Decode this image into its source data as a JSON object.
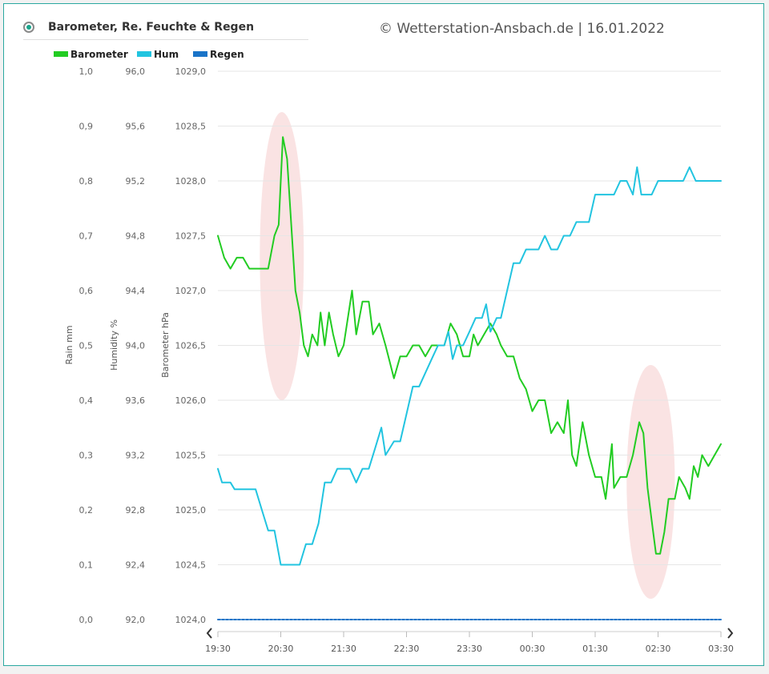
{
  "header": {
    "title": "Barometer, Re. Feuchte & Regen",
    "copyright": "© Wetterstation-Ansbach.de  |  16.01.2022"
  },
  "chart_data": {
    "type": "line",
    "x": [
      "19:30",
      "20:30",
      "21:30",
      "22:30",
      "23:30",
      "00:30",
      "01:30",
      "02:30",
      "03:30"
    ],
    "series": [
      {
        "name": "Barometer",
        "color": "#22cc22",
        "axis": "Barometer hPa",
        "points": [
          [
            "19:30",
            1027.5
          ],
          [
            "19:36",
            1027.3
          ],
          [
            "19:42",
            1027.2
          ],
          [
            "19:48",
            1027.3
          ],
          [
            "19:54",
            1027.3
          ],
          [
            "20:00",
            1027.2
          ],
          [
            "20:06",
            1027.2
          ],
          [
            "20:12",
            1027.2
          ],
          [
            "20:18",
            1027.2
          ],
          [
            "20:24",
            1027.5
          ],
          [
            "20:28",
            1027.6
          ],
          [
            "20:32",
            1028.4
          ],
          [
            "20:36",
            1028.2
          ],
          [
            "20:40",
            1027.6
          ],
          [
            "20:44",
            1027.0
          ],
          [
            "20:48",
            1026.8
          ],
          [
            "20:52",
            1026.5
          ],
          [
            "20:56",
            1026.4
          ],
          [
            "21:00",
            1026.6
          ],
          [
            "21:05",
            1026.5
          ],
          [
            "21:08",
            1026.8
          ],
          [
            "21:12",
            1026.5
          ],
          [
            "21:16",
            1026.8
          ],
          [
            "21:20",
            1026.6
          ],
          [
            "21:25",
            1026.4
          ],
          [
            "21:30",
            1026.5
          ],
          [
            "21:38",
            1027.0
          ],
          [
            "21:42",
            1026.6
          ],
          [
            "21:48",
            1026.9
          ],
          [
            "21:54",
            1026.9
          ],
          [
            "21:58",
            1026.6
          ],
          [
            "22:04",
            1026.7
          ],
          [
            "22:10",
            1026.5
          ],
          [
            "22:18",
            1026.2
          ],
          [
            "22:24",
            1026.4
          ],
          [
            "22:30",
            1026.4
          ],
          [
            "22:36",
            1026.5
          ],
          [
            "22:42",
            1026.5
          ],
          [
            "22:48",
            1026.4
          ],
          [
            "22:54",
            1026.5
          ],
          [
            "23:00",
            1026.5
          ],
          [
            "23:06",
            1026.5
          ],
          [
            "23:12",
            1026.7
          ],
          [
            "23:18",
            1026.6
          ],
          [
            "23:24",
            1026.4
          ],
          [
            "23:30",
            1026.4
          ],
          [
            "23:34",
            1026.6
          ],
          [
            "23:38",
            1026.5
          ],
          [
            "23:44",
            1026.6
          ],
          [
            "23:50",
            1026.7
          ],
          [
            "23:56",
            1026.6
          ],
          [
            "24:00",
            1026.5
          ],
          [
            "24:06",
            1026.4
          ],
          [
            "24:12",
            1026.4
          ],
          [
            "24:18",
            1026.2
          ],
          [
            "24:24",
            1026.1
          ],
          [
            "24:30",
            1025.9
          ],
          [
            "24:36",
            1026.0
          ],
          [
            "24:42",
            1026.0
          ],
          [
            "24:48",
            1025.7
          ],
          [
            "24:54",
            1025.8
          ],
          [
            "25:00",
            1025.7
          ],
          [
            "25:04",
            1026.0
          ],
          [
            "25:08",
            1025.5
          ],
          [
            "25:12",
            1025.4
          ],
          [
            "25:18",
            1025.8
          ],
          [
            "25:24",
            1025.5
          ],
          [
            "25:30",
            1025.3
          ],
          [
            "25:36",
            1025.3
          ],
          [
            "25:40",
            1025.1
          ],
          [
            "25:46",
            1025.6
          ],
          [
            "25:48",
            1025.2
          ],
          [
            "25:54",
            1025.3
          ],
          [
            "26:00",
            1025.3
          ],
          [
            "26:06",
            1025.5
          ],
          [
            "26:12",
            1025.8
          ],
          [
            "26:16",
            1025.7
          ],
          [
            "26:20",
            1025.2
          ],
          [
            "26:24",
            1024.9
          ],
          [
            "26:28",
            1024.6
          ],
          [
            "26:32",
            1024.6
          ],
          [
            "26:36",
            1024.8
          ],
          [
            "26:40",
            1025.1
          ],
          [
            "26:46",
            1025.1
          ],
          [
            "26:50",
            1025.3
          ],
          [
            "26:56",
            1025.2
          ],
          [
            "27:00",
            1025.1
          ],
          [
            "27:04",
            1025.4
          ],
          [
            "27:08",
            1025.3
          ],
          [
            "27:12",
            1025.5
          ],
          [
            "27:18",
            1025.4
          ],
          [
            "27:24",
            1025.5
          ],
          [
            "27:30",
            1025.6
          ]
        ]
      },
      {
        "name": "Hum",
        "color": "#22c4e0",
        "axis": "Humidity %",
        "points": [
          [
            "19:30",
            93.1
          ],
          [
            "19:34",
            93.0
          ],
          [
            "19:42",
            93.0
          ],
          [
            "19:46",
            92.95
          ],
          [
            "19:54",
            92.95
          ],
          [
            "20:06",
            92.95
          ],
          [
            "20:12",
            92.8
          ],
          [
            "20:18",
            92.65
          ],
          [
            "20:24",
            92.65
          ],
          [
            "20:30",
            92.4
          ],
          [
            "20:36",
            92.4
          ],
          [
            "20:42",
            92.4
          ],
          [
            "20:48",
            92.4
          ],
          [
            "20:54",
            92.55
          ],
          [
            "21:00",
            92.55
          ],
          [
            "21:06",
            92.7
          ],
          [
            "21:12",
            93.0
          ],
          [
            "21:18",
            93.0
          ],
          [
            "21:24",
            93.1
          ],
          [
            "21:30",
            93.1
          ],
          [
            "21:36",
            93.1
          ],
          [
            "21:42",
            93.0
          ],
          [
            "21:48",
            93.1
          ],
          [
            "21:54",
            93.1
          ],
          [
            "22:00",
            93.25
          ],
          [
            "22:06",
            93.4
          ],
          [
            "22:10",
            93.2
          ],
          [
            "22:18",
            93.3
          ],
          [
            "22:24",
            93.3
          ],
          [
            "22:30",
            93.5
          ],
          [
            "22:36",
            93.7
          ],
          [
            "22:42",
            93.7
          ],
          [
            "22:48",
            93.8
          ],
          [
            "22:54",
            93.9
          ],
          [
            "23:00",
            94.0
          ],
          [
            "23:06",
            94.0
          ],
          [
            "23:10",
            94.1
          ],
          [
            "23:14",
            93.9
          ],
          [
            "23:18",
            94.0
          ],
          [
            "23:24",
            94.0
          ],
          [
            "23:30",
            94.1
          ],
          [
            "23:36",
            94.2
          ],
          [
            "23:42",
            94.2
          ],
          [
            "23:46",
            94.3
          ],
          [
            "23:50",
            94.1
          ],
          [
            "23:56",
            94.2
          ],
          [
            "24:00",
            94.2
          ],
          [
            "24:06",
            94.4
          ],
          [
            "24:12",
            94.6
          ],
          [
            "24:18",
            94.6
          ],
          [
            "24:24",
            94.7
          ],
          [
            "24:30",
            94.7
          ],
          [
            "24:36",
            94.7
          ],
          [
            "24:42",
            94.8
          ],
          [
            "24:48",
            94.7
          ],
          [
            "24:54",
            94.7
          ],
          [
            "25:00",
            94.8
          ],
          [
            "25:06",
            94.8
          ],
          [
            "25:12",
            94.9
          ],
          [
            "25:18",
            94.9
          ],
          [
            "25:24",
            94.9
          ],
          [
            "25:30",
            95.1
          ],
          [
            "25:36",
            95.1
          ],
          [
            "25:42",
            95.1
          ],
          [
            "25:48",
            95.1
          ],
          [
            "25:54",
            95.2
          ],
          [
            "26:00",
            95.2
          ],
          [
            "26:06",
            95.1
          ],
          [
            "26:10",
            95.3
          ],
          [
            "26:14",
            95.1
          ],
          [
            "26:18",
            95.1
          ],
          [
            "26:24",
            95.1
          ],
          [
            "26:30",
            95.2
          ],
          [
            "26:36",
            95.2
          ],
          [
            "26:42",
            95.2
          ],
          [
            "26:48",
            95.2
          ],
          [
            "26:54",
            95.2
          ],
          [
            "27:00",
            95.3
          ],
          [
            "27:06",
            95.2
          ],
          [
            "27:12",
            95.2
          ],
          [
            "27:18",
            95.2
          ],
          [
            "27:24",
            95.2
          ],
          [
            "27:30",
            95.2
          ]
        ]
      },
      {
        "name": "Regen",
        "color": "#1a74c8",
        "axis": "Rain mm",
        "points": [
          [
            "19:30",
            0.0
          ],
          [
            "27:30",
            0.0
          ]
        ]
      }
    ],
    "axes": {
      "rain": {
        "label": "Rain mm",
        "min": 0,
        "max": 1,
        "ticks": [
          "0,0",
          "0,1",
          "0,2",
          "0,3",
          "0,4",
          "0,5",
          "0,6",
          "0,7",
          "0,8",
          "0,9",
          "1,0"
        ]
      },
      "humidity": {
        "label": "Humidity %",
        "min": 92,
        "max": 96,
        "ticks": [
          "92,0",
          "92,4",
          "92,8",
          "93,2",
          "93,6",
          "94,0",
          "94,4",
          "94,8",
          "95,2",
          "95,6",
          "96,0"
        ]
      },
      "barometer": {
        "label": "Barometer hPa",
        "min": 1024,
        "max": 1029,
        "ticks": [
          "1024,0",
          "1024,5",
          "1025,0",
          "1025,5",
          "1026,0",
          "1026,5",
          "1027,0",
          "1027,5",
          "1028,0",
          "1028,5",
          "1029,0"
        ]
      }
    },
    "highlights": [
      {
        "from": "20:10",
        "to": "20:52",
        "color": "#f9dede"
      },
      {
        "from": "26:00",
        "to": "26:46",
        "color": "#f9dede"
      }
    ],
    "grid": true,
    "legend": "top-left"
  }
}
